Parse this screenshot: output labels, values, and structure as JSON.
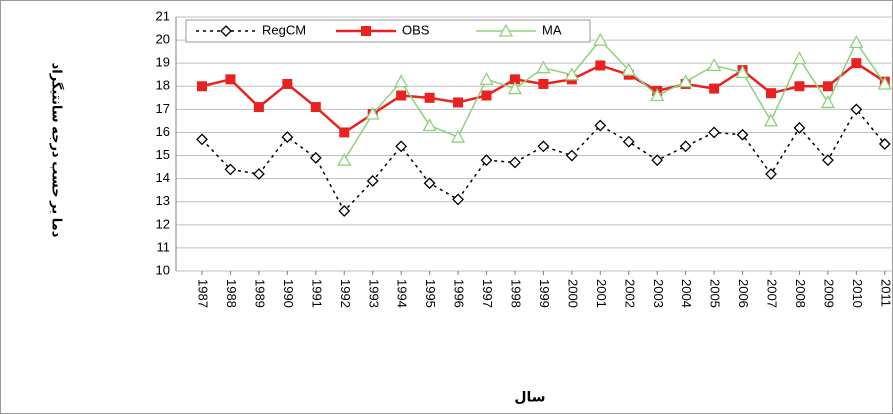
{
  "chart_data": {
    "type": "line",
    "y_label": "دما بر حسب درجه سانتیگراد",
    "x_label": "سال",
    "categories": [
      "1987",
      "1988",
      "1989",
      "1990",
      "1991",
      "1992",
      "1993",
      "1994",
      "1995",
      "1996",
      "1997",
      "1998",
      "1999",
      "2000",
      "2001",
      "2002",
      "2003",
      "2004",
      "2005",
      "2006",
      "2007",
      "2008",
      "2009",
      "2010",
      "2011"
    ],
    "series": [
      {
        "name": "RegCM",
        "color": "#000000",
        "values": [
          15.7,
          14.4,
          14.2,
          15.8,
          14.9,
          12.6,
          13.9,
          15.4,
          13.8,
          13.1,
          14.8,
          14.7,
          15.4,
          15.0,
          16.3,
          15.6,
          14.8,
          15.4,
          16.0,
          15.9,
          14.2,
          16.2,
          14.8,
          17.0,
          15.5
        ]
      },
      {
        "name": "OBS",
        "color": "#e8231f",
        "values": [
          18.0,
          18.3,
          17.1,
          18.1,
          17.1,
          16.0,
          16.8,
          17.6,
          17.5,
          17.3,
          17.6,
          18.3,
          18.1,
          18.3,
          18.9,
          18.5,
          17.8,
          18.1,
          17.9,
          18.7,
          17.7,
          18.0,
          18.0,
          19.0,
          18.2
        ]
      },
      {
        "name": "MA",
        "color": "#8fd17a",
        "values": [
          null,
          null,
          null,
          null,
          null,
          14.8,
          16.8,
          18.2,
          16.3,
          15.8,
          18.3,
          17.9,
          18.8,
          18.5,
          20.0,
          18.7,
          17.6,
          18.2,
          18.9,
          18.6,
          16.5,
          19.2,
          17.3,
          19.9,
          18.1
        ]
      }
    ],
    "ylim": [
      10,
      21
    ],
    "yticks": [
      10,
      11,
      12,
      13,
      14,
      15,
      16,
      17,
      18,
      19,
      20,
      21
    ],
    "grid": true,
    "legend": "top"
  }
}
